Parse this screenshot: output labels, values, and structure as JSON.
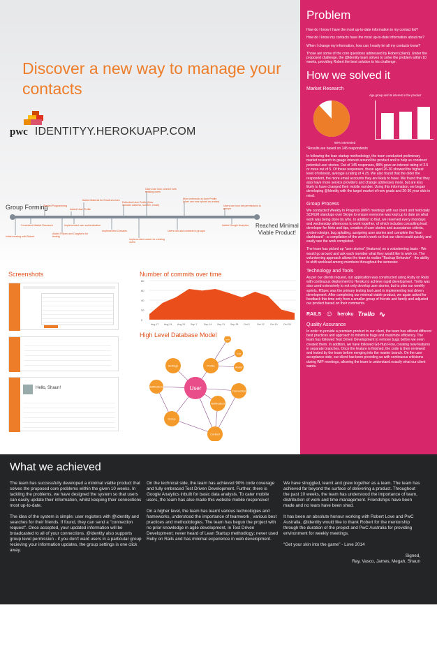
{
  "headline": "Discover a new way to manage your contacts",
  "logo": {
    "brand": "pwc",
    "domain": "IDENTITYY.HEROKUAPP.COM"
  },
  "timeline": {
    "start": "Group Forming",
    "end_line1": "Reached Minimal",
    "end_line2": "Viable Product!",
    "events_above": [
      "Started Programming",
      "Added User Profile",
      "Added Material for Email services",
      "Extended User Profile (Now includes address, number, email)",
      "Users can now connect with existing users",
      "More extension to User Profile (User can now upload an avatar)",
      "Users can now set permissions to groups"
    ],
    "events_below": [
      "Initial meeting with Robert",
      "Conducted Market Research",
      "Added RSpec and Capybara for testing",
      "Implemented user authentication",
      "Implemented Contacts",
      "Implemented search for existing users",
      "Users can add contacts to groups",
      "Added Google Analytics"
    ]
  },
  "screenshots_title": "Screenshots",
  "commits": {
    "title": "Number of commits over time",
    "xlabels": [
      "Aug 17",
      "Aug 24",
      "Aug 31",
      "Sep 7",
      "Sep 14",
      "Sep 21",
      "Sep 28",
      "Oct 5",
      "Oct 12",
      "Oct 19",
      "Oct 26"
    ],
    "ylabels": [
      "80",
      "60",
      "40",
      "20",
      "0"
    ]
  },
  "db": {
    "title": "High Level Database Model",
    "center": "User",
    "nodes": [
      "Profile",
      "Settings",
      "Notifications",
      "Group",
      "Contact",
      "Notification",
      "Connection",
      "Invite",
      "Logs",
      "Avatar"
    ]
  },
  "problem": {
    "title": "Problem",
    "q1": "How do I know I have the most up-to-date information in my contact list?",
    "q2": "How do I know my contacts have the most up-to-date information about me?",
    "q3": "When I change my information, how can I easily let all my contacts know?",
    "p": "Those are some of the core questions addressed by Robert (client). Under the proposed challenge, the @Identity team strives to solve the problem within 10 weeks, providing Robert the best solution to his challenge."
  },
  "solved": {
    "title": "How we solved it",
    "market_title": "Market Research",
    "chart_label": "Age group and its interest in the product",
    "interested": "88% Interested",
    "results": "*Results are based on 145 respondents",
    "market_p": "In following the lean startup methodology, the team conducted preliminary market research to gauge interest around the product and to help us construct potential user stories. Out of 145 responses, 88% gave an interest rating of 2.5 or more out of 5. Of these responses, those aged 26-30 showed the highest level of interest, average a rating of 4.25. We also found that the older the respondent, the more email accounts they are likely to have. We found that they also have more service providers and change addresses more, but are less likely to have changed their mobile number. Using this information, we began developing @Identity with the target market of new grads and 26-30 year olds in mind.",
    "group_title": "Group Process",
    "group_p1": "We conducted Weekly In Progress (WIP) meetings with our client and held daily SCRUM standups over Skype to ensure everyone was kept up to date on what work was being done by who. In addition to that, we reserved every mondays and wednesday afternoons to work together, of which includes consulting lead developer for hints and tips, creation of user stories and acceptance criteria, system design, bug splatting, assigning user stories and complete the 'lean dashboard' - a compilation of the week's work so that our client could quickly and easily see the work completed.",
    "group_p2": "The team has picked up \"user stories\" (features) on a volunteering basis - We would go around and ask each member what they would like to work on. The volunteering approach allows the team to realize \"Backup Behavior\" - the ability to shift workload among members throughout the semester.",
    "tech_title": "Technology and Tools",
    "tech_p": "As per our clients request, our application was constructed using Ruby on Rails with continuous deployment to Heroku to achieve rapid development. Trello was also used extensively to not only develop user stories, but to plan our weekly sprints. RSpec was the primary testing tool used in implementing test driven development. After completing our minimal viable product, we again asked for feedback this time only from a smaller group of friends and family and adjusted our product based on their comments.",
    "tools": [
      "RAILS",
      "heroku",
      "Trello"
    ],
    "qa_title": "Quality Assurance",
    "qa_p": "In order to provide a premium product to our client, the team has utilized different best practices and approach to minimize bugs and maximize efficiency. The team has followed Test Driven Development to remove bugs before we even created them. In addition, we have followed Git-Hub Flow, creating new features in separate branches. Once the feature is finished, the code is then reviewed and tested by the team before merging into the master branch. On the user acceptance side, our client has been providing us with continuous criticisms during WIP meetings, allowing the team to understand exactly what our client wants."
  },
  "what": {
    "title": "What we achieved",
    "c1p1": "The team has successfully developed a minimal viable product that solves the proposed core problems within the given 10 weeks. In tackling the problems, we have designed the system so that users can easily update their information, whilst keeping their connections most up-to-date.",
    "c1p2": "The idea of the system is simple: user registers with @identity and searches for their friends. If found, they can send a \"connection request\". Once accepted, your updated information will be broadcasted to all of your connections. @identity also supports group level permission - if you don't want users in a particular group recieving your information updates, the group settings is one click away.",
    "c2p1": "On the technical side, the team has achieved 90% code coverage and fully embraced Test Driven Development. Further, there is Google Analytics inbuilt for basic data analysis. To cater mobile users, the team has also made this website mobile responsive!",
    "c2p2": "On a higher level, the team has learnt various technologies and frameworks, understood the importance of teamwork , various best practices and methodologies. The team has begun the project with no prior knowledge in agile development, in Test Driven Development; never heard of Lean Startup methodlogy; never used Ruby on Rails and has minimal experience in web development.",
    "c3p1": "We have struggled, learnt and grew together as a team. The team has achieved far beyond the surface of delivering a product. Throughout the past 10 weeks, the team has understood the importance of team, distribution of work and time management. Friendships have been made and no tears have been shed.",
    "c3p2": "It has been an absolute honour working with Robert Love and PwC Australia. @identity would like to thank Robert for the mentorship through the duration of the project and PwC Australia for providing environment for weekly meetings.",
    "quote": "\"Get your skin into the game\" - Love 2014",
    "signed": "Signed,",
    "names": "Ray, Vasco, James, Megah, Shaun"
  },
  "screens": {
    "s3_name": "Hello, Shaun!"
  }
}
